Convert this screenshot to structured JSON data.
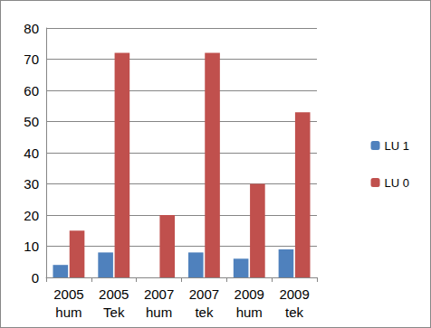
{
  "chart_data": {
    "type": "bar",
    "categories": [
      "2005\nhum",
      "2005\nTek",
      "2007\nhum",
      "2007\ntek",
      "2009\nhum",
      "2009\ntek"
    ],
    "series": [
      {
        "name": "LU 1",
        "color": "#4f81bd",
        "values": [
          4,
          8,
          0,
          8,
          6,
          9
        ]
      },
      {
        "name": "LU 0",
        "color": "#c0504d",
        "values": [
          15,
          72,
          20,
          72,
          30,
          53
        ]
      }
    ],
    "ylim": [
      0,
      80
    ],
    "yticks": [
      0,
      10,
      20,
      30,
      40,
      50,
      60,
      70,
      80
    ],
    "grid": true,
    "legend": "right"
  }
}
